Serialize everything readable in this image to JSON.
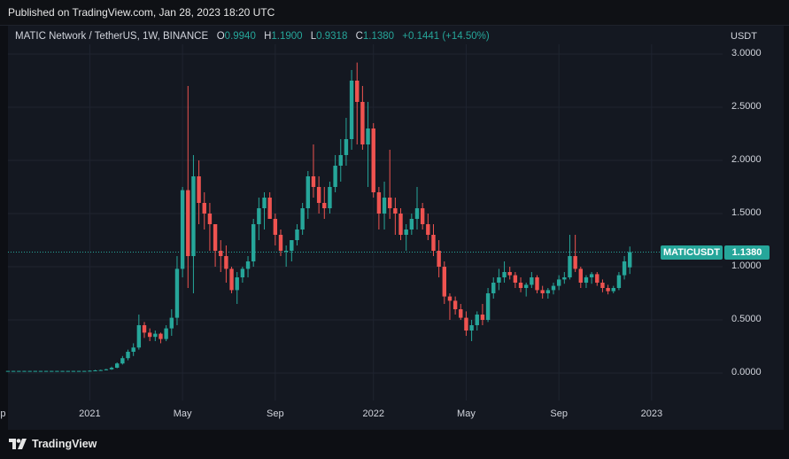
{
  "header": {
    "published": "Published on TradingView.com, Jan 28, 2023 18:20 UTC"
  },
  "legend": {
    "title": "MATIC Network / TetherUS, 1W, BINANCE",
    "o_label": "O",
    "o_value": "0.9940",
    "h_label": "H",
    "h_value": "1.1900",
    "l_label": "L",
    "l_value": "0.9318",
    "c_label": "C",
    "c_value": "1.1380",
    "change": "+0.1441 (+14.50%)"
  },
  "currency": "USDT",
  "symbol_tag": "MATICUSDT",
  "price_tag": "1.1380",
  "footer": {
    "brand": "TradingView",
    "logo_icon": "tradingview-logo-icon"
  },
  "colors": {
    "up": "#26a69a",
    "down": "#ef5350",
    "background": "#141821",
    "grid": "#1f2430"
  },
  "chart_data": {
    "type": "candlestick",
    "symbol": "MATICUSDT",
    "interval": "1W",
    "exchange": "BINANCE",
    "ylim": [
      -0.1,
      3.2
    ],
    "y_ticks": [
      "3.0000",
      "2.5000",
      "2.0000",
      "1.5000",
      "1.0000",
      "0.5000",
      "0.0000"
    ],
    "x_ticks": [
      "Sep",
      "2021",
      "May",
      "Sep",
      "2022",
      "May",
      "Sep",
      "2023"
    ],
    "x_tick_index": [
      -2,
      15,
      32,
      49,
      67,
      84,
      101,
      118
    ],
    "last_price": 1.138,
    "candles": [
      [
        0.02,
        0.02,
        0.02,
        0.02
      ],
      [
        0.02,
        0.021,
        0.019,
        0.02
      ],
      [
        0.02,
        0.021,
        0.019,
        0.02
      ],
      [
        0.02,
        0.021,
        0.019,
        0.02
      ],
      [
        0.02,
        0.021,
        0.019,
        0.02
      ],
      [
        0.02,
        0.021,
        0.019,
        0.02
      ],
      [
        0.02,
        0.021,
        0.019,
        0.02
      ],
      [
        0.02,
        0.021,
        0.019,
        0.02
      ],
      [
        0.02,
        0.021,
        0.019,
        0.02
      ],
      [
        0.02,
        0.021,
        0.019,
        0.02
      ],
      [
        0.02,
        0.021,
        0.019,
        0.02
      ],
      [
        0.02,
        0.021,
        0.019,
        0.02
      ],
      [
        0.02,
        0.021,
        0.019,
        0.02
      ],
      [
        0.02,
        0.021,
        0.019,
        0.02
      ],
      [
        0.02,
        0.021,
        0.019,
        0.02
      ],
      [
        0.02,
        0.025,
        0.018,
        0.022
      ],
      [
        0.022,
        0.03,
        0.02,
        0.025
      ],
      [
        0.025,
        0.032,
        0.022,
        0.028
      ],
      [
        0.028,
        0.04,
        0.025,
        0.035
      ],
      [
        0.035,
        0.06,
        0.03,
        0.05
      ],
      [
        0.05,
        0.1,
        0.045,
        0.09
      ],
      [
        0.09,
        0.16,
        0.08,
        0.14
      ],
      [
        0.14,
        0.22,
        0.12,
        0.2
      ],
      [
        0.2,
        0.28,
        0.16,
        0.24
      ],
      [
        0.24,
        0.55,
        0.22,
        0.45
      ],
      [
        0.45,
        0.48,
        0.33,
        0.38
      ],
      [
        0.38,
        0.42,
        0.3,
        0.34
      ],
      [
        0.34,
        0.4,
        0.3,
        0.37
      ],
      [
        0.37,
        0.38,
        0.28,
        0.32
      ],
      [
        0.32,
        0.45,
        0.3,
        0.42
      ],
      [
        0.42,
        0.6,
        0.35,
        0.52
      ],
      [
        0.52,
        1.1,
        0.45,
        0.98
      ],
      [
        0.98,
        1.75,
        0.9,
        1.72
      ],
      [
        1.72,
        2.7,
        0.8,
        1.1
      ],
      [
        1.1,
        2.05,
        0.75,
        1.85
      ],
      [
        1.85,
        2.0,
        1.4,
        1.6
      ],
      [
        1.6,
        1.7,
        1.35,
        1.5
      ],
      [
        1.5,
        1.6,
        1.15,
        1.4
      ],
      [
        1.4,
        1.4,
        1.0,
        1.15
      ],
      [
        1.15,
        1.25,
        0.95,
        1.1
      ],
      [
        1.1,
        1.2,
        0.85,
        0.98
      ],
      [
        0.98,
        1.0,
        0.75,
        0.78
      ],
      [
        0.78,
        0.95,
        0.65,
        0.9
      ],
      [
        0.9,
        1.0,
        0.85,
        0.98
      ],
      [
        0.98,
        1.1,
        0.9,
        1.05
      ],
      [
        1.05,
        1.45,
        1.0,
        1.4
      ],
      [
        1.4,
        1.65,
        1.25,
        1.55
      ],
      [
        1.55,
        1.7,
        1.35,
        1.65
      ],
      [
        1.65,
        1.7,
        1.45,
        1.45
      ],
      [
        1.45,
        1.5,
        1.2,
        1.3
      ],
      [
        1.3,
        1.35,
        1.1,
        1.15
      ],
      [
        1.15,
        1.2,
        1.0,
        1.15
      ],
      [
        1.15,
        1.25,
        1.05,
        1.25
      ],
      [
        1.25,
        1.4,
        1.2,
        1.35
      ],
      [
        1.35,
        1.6,
        1.3,
        1.55
      ],
      [
        1.55,
        1.9,
        1.45,
        1.85
      ],
      [
        1.85,
        2.15,
        1.65,
        1.75
      ],
      [
        1.75,
        1.85,
        1.5,
        1.6
      ],
      [
        1.6,
        1.75,
        1.45,
        1.55
      ],
      [
        1.55,
        1.8,
        1.5,
        1.75
      ],
      [
        1.75,
        2.05,
        1.7,
        1.95
      ],
      [
        1.95,
        2.2,
        1.8,
        2.05
      ],
      [
        2.05,
        2.4,
        1.95,
        2.2
      ],
      [
        2.2,
        2.85,
        2.1,
        2.75
      ],
      [
        2.75,
        2.92,
        2.15,
        2.55
      ],
      [
        2.55,
        2.7,
        2.1,
        2.15
      ],
      [
        2.15,
        2.55,
        1.75,
        2.3
      ],
      [
        2.3,
        2.35,
        1.65,
        1.7
      ],
      [
        1.7,
        1.75,
        1.35,
        1.5
      ],
      [
        1.5,
        1.8,
        1.35,
        1.65
      ],
      [
        1.65,
        2.1,
        1.45,
        1.55
      ],
      [
        1.55,
        1.65,
        1.3,
        1.5
      ],
      [
        1.5,
        1.55,
        1.25,
        1.3
      ],
      [
        1.3,
        1.4,
        1.15,
        1.35
      ],
      [
        1.35,
        1.5,
        1.3,
        1.45
      ],
      [
        1.45,
        1.75,
        1.35,
        1.55
      ],
      [
        1.55,
        1.6,
        1.35,
        1.4
      ],
      [
        1.4,
        1.5,
        1.25,
        1.3
      ],
      [
        1.3,
        1.4,
        1.1,
        1.15
      ],
      [
        1.15,
        1.25,
        0.9,
        1.0
      ],
      [
        1.0,
        1.05,
        0.65,
        0.72
      ],
      [
        0.72,
        0.75,
        0.5,
        0.68
      ],
      [
        0.68,
        0.72,
        0.55,
        0.6
      ],
      [
        0.6,
        0.65,
        0.5,
        0.52
      ],
      [
        0.52,
        0.58,
        0.35,
        0.4
      ],
      [
        0.4,
        0.5,
        0.3,
        0.45
      ],
      [
        0.45,
        0.58,
        0.4,
        0.55
      ],
      [
        0.55,
        0.65,
        0.45,
        0.5
      ],
      [
        0.5,
        0.8,
        0.48,
        0.75
      ],
      [
        0.75,
        0.9,
        0.7,
        0.85
      ],
      [
        0.85,
        0.98,
        0.78,
        0.9
      ],
      [
        0.9,
        1.05,
        0.85,
        0.95
      ],
      [
        0.95,
        1.0,
        0.88,
        0.92
      ],
      [
        0.92,
        0.95,
        0.8,
        0.85
      ],
      [
        0.85,
        0.9,
        0.76,
        0.8
      ],
      [
        0.8,
        0.85,
        0.72,
        0.83
      ],
      [
        0.83,
        0.95,
        0.8,
        0.9
      ],
      [
        0.9,
        0.92,
        0.75,
        0.78
      ],
      [
        0.78,
        0.82,
        0.7,
        0.75
      ],
      [
        0.75,
        0.8,
        0.7,
        0.78
      ],
      [
        0.78,
        0.85,
        0.74,
        0.82
      ],
      [
        0.82,
        0.92,
        0.78,
        0.88
      ],
      [
        0.88,
        0.95,
        0.84,
        0.9
      ],
      [
        0.9,
        1.3,
        0.88,
        1.1
      ],
      [
        1.1,
        1.3,
        0.95,
        0.98
      ],
      [
        0.98,
        1.0,
        0.8,
        0.85
      ],
      [
        0.85,
        0.92,
        0.8,
        0.9
      ],
      [
        0.9,
        0.95,
        0.84,
        0.93
      ],
      [
        0.93,
        0.95,
        0.82,
        0.85
      ],
      [
        0.85,
        0.88,
        0.76,
        0.8
      ],
      [
        0.8,
        0.83,
        0.74,
        0.77
      ],
      [
        0.77,
        0.82,
        0.75,
        0.8
      ],
      [
        0.8,
        0.95,
        0.78,
        0.92
      ],
      [
        0.92,
        1.1,
        0.88,
        1.05
      ],
      [
        0.994,
        1.19,
        0.9318,
        1.138
      ]
    ]
  }
}
